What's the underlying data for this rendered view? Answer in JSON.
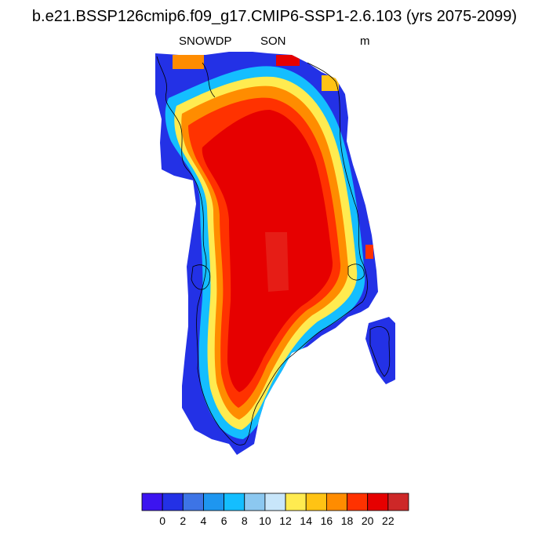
{
  "title": "b.e21.BSSP126cmip6.f09_g17.CMIP6-SSP1-2.6.103 (yrs 2075-2099)",
  "variable": "SNOWDP",
  "season": "SON",
  "units": "m",
  "colorbar": {
    "colors": [
      "#3c14f0",
      "#2331e6",
      "#3d74e6",
      "#1e96f0",
      "#14beff",
      "#8cc8f0",
      "#c8e6fa",
      "#ffeb50",
      "#ffc314",
      "#ff8c00",
      "#ff3200",
      "#e60000",
      "#cd2828"
    ],
    "tick_labels": [
      "0",
      "2",
      "4",
      "6",
      "8",
      "10",
      "12",
      "14",
      "16",
      "18",
      "20",
      "22"
    ]
  }
}
